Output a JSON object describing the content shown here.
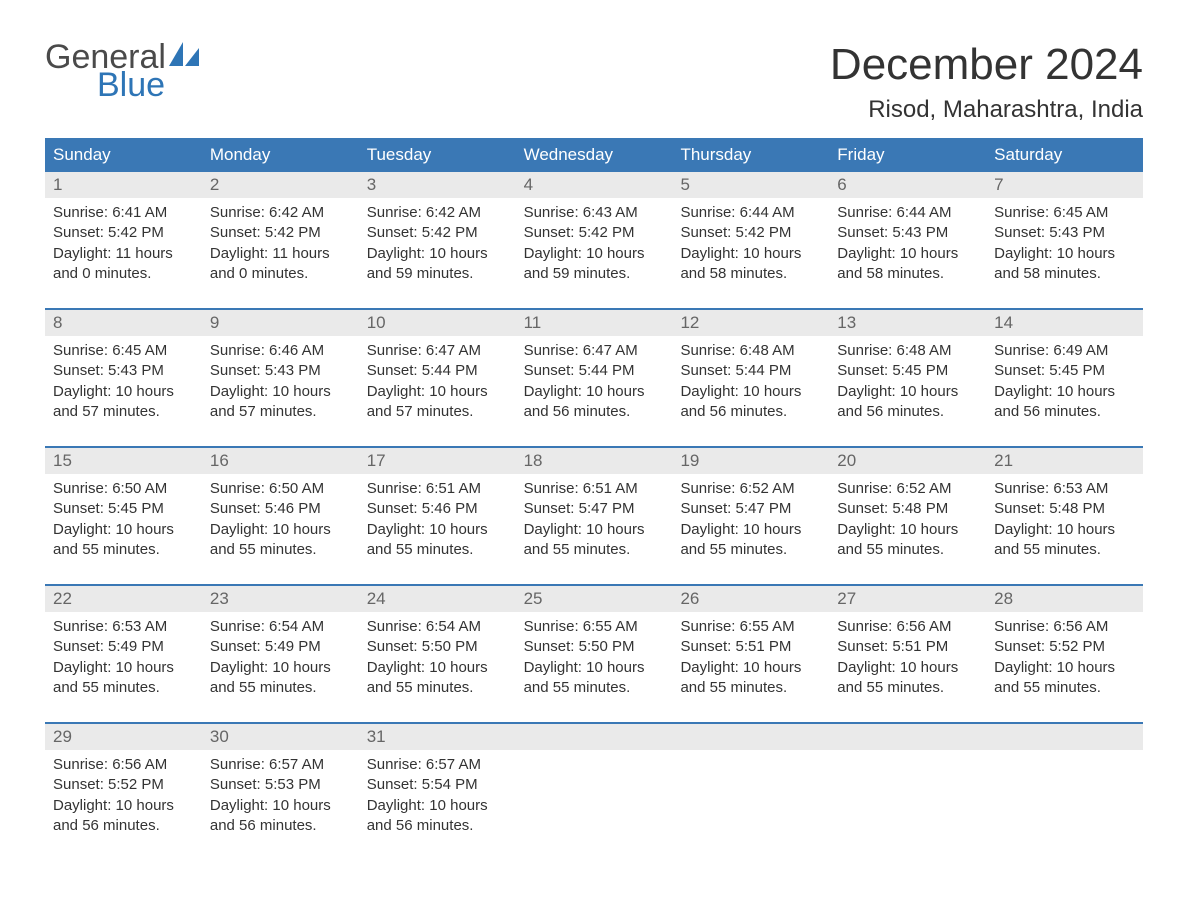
{
  "brand": {
    "general": "General",
    "blue": "Blue"
  },
  "title": "December 2024",
  "location": "Risod, Maharashtra, India",
  "colors": {
    "header_bg": "#3a78b5",
    "header_text": "#ffffff",
    "daynum_bg": "#eaeaea",
    "daynum_text": "#666666",
    "body_text": "#333333",
    "brand_blue": "#2e75b6",
    "brand_gray": "#4a4a4a",
    "week_border": "#3a78b5"
  },
  "weekdays": [
    "Sunday",
    "Monday",
    "Tuesday",
    "Wednesday",
    "Thursday",
    "Friday",
    "Saturday"
  ],
  "weeks": [
    [
      {
        "n": "1",
        "sunrise": "Sunrise: 6:41 AM",
        "sunset": "Sunset: 5:42 PM",
        "d1": "Daylight: 11 hours",
        "d2": "and 0 minutes."
      },
      {
        "n": "2",
        "sunrise": "Sunrise: 6:42 AM",
        "sunset": "Sunset: 5:42 PM",
        "d1": "Daylight: 11 hours",
        "d2": "and 0 minutes."
      },
      {
        "n": "3",
        "sunrise": "Sunrise: 6:42 AM",
        "sunset": "Sunset: 5:42 PM",
        "d1": "Daylight: 10 hours",
        "d2": "and 59 minutes."
      },
      {
        "n": "4",
        "sunrise": "Sunrise: 6:43 AM",
        "sunset": "Sunset: 5:42 PM",
        "d1": "Daylight: 10 hours",
        "d2": "and 59 minutes."
      },
      {
        "n": "5",
        "sunrise": "Sunrise: 6:44 AM",
        "sunset": "Sunset: 5:42 PM",
        "d1": "Daylight: 10 hours",
        "d2": "and 58 minutes."
      },
      {
        "n": "6",
        "sunrise": "Sunrise: 6:44 AM",
        "sunset": "Sunset: 5:43 PM",
        "d1": "Daylight: 10 hours",
        "d2": "and 58 minutes."
      },
      {
        "n": "7",
        "sunrise": "Sunrise: 6:45 AM",
        "sunset": "Sunset: 5:43 PM",
        "d1": "Daylight: 10 hours",
        "d2": "and 58 minutes."
      }
    ],
    [
      {
        "n": "8",
        "sunrise": "Sunrise: 6:45 AM",
        "sunset": "Sunset: 5:43 PM",
        "d1": "Daylight: 10 hours",
        "d2": "and 57 minutes."
      },
      {
        "n": "9",
        "sunrise": "Sunrise: 6:46 AM",
        "sunset": "Sunset: 5:43 PM",
        "d1": "Daylight: 10 hours",
        "d2": "and 57 minutes."
      },
      {
        "n": "10",
        "sunrise": "Sunrise: 6:47 AM",
        "sunset": "Sunset: 5:44 PM",
        "d1": "Daylight: 10 hours",
        "d2": "and 57 minutes."
      },
      {
        "n": "11",
        "sunrise": "Sunrise: 6:47 AM",
        "sunset": "Sunset: 5:44 PM",
        "d1": "Daylight: 10 hours",
        "d2": "and 56 minutes."
      },
      {
        "n": "12",
        "sunrise": "Sunrise: 6:48 AM",
        "sunset": "Sunset: 5:44 PM",
        "d1": "Daylight: 10 hours",
        "d2": "and 56 minutes."
      },
      {
        "n": "13",
        "sunrise": "Sunrise: 6:48 AM",
        "sunset": "Sunset: 5:45 PM",
        "d1": "Daylight: 10 hours",
        "d2": "and 56 minutes."
      },
      {
        "n": "14",
        "sunrise": "Sunrise: 6:49 AM",
        "sunset": "Sunset: 5:45 PM",
        "d1": "Daylight: 10 hours",
        "d2": "and 56 minutes."
      }
    ],
    [
      {
        "n": "15",
        "sunrise": "Sunrise: 6:50 AM",
        "sunset": "Sunset: 5:45 PM",
        "d1": "Daylight: 10 hours",
        "d2": "and 55 minutes."
      },
      {
        "n": "16",
        "sunrise": "Sunrise: 6:50 AM",
        "sunset": "Sunset: 5:46 PM",
        "d1": "Daylight: 10 hours",
        "d2": "and 55 minutes."
      },
      {
        "n": "17",
        "sunrise": "Sunrise: 6:51 AM",
        "sunset": "Sunset: 5:46 PM",
        "d1": "Daylight: 10 hours",
        "d2": "and 55 minutes."
      },
      {
        "n": "18",
        "sunrise": "Sunrise: 6:51 AM",
        "sunset": "Sunset: 5:47 PM",
        "d1": "Daylight: 10 hours",
        "d2": "and 55 minutes."
      },
      {
        "n": "19",
        "sunrise": "Sunrise: 6:52 AM",
        "sunset": "Sunset: 5:47 PM",
        "d1": "Daylight: 10 hours",
        "d2": "and 55 minutes."
      },
      {
        "n": "20",
        "sunrise": "Sunrise: 6:52 AM",
        "sunset": "Sunset: 5:48 PM",
        "d1": "Daylight: 10 hours",
        "d2": "and 55 minutes."
      },
      {
        "n": "21",
        "sunrise": "Sunrise: 6:53 AM",
        "sunset": "Sunset: 5:48 PM",
        "d1": "Daylight: 10 hours",
        "d2": "and 55 minutes."
      }
    ],
    [
      {
        "n": "22",
        "sunrise": "Sunrise: 6:53 AM",
        "sunset": "Sunset: 5:49 PM",
        "d1": "Daylight: 10 hours",
        "d2": "and 55 minutes."
      },
      {
        "n": "23",
        "sunrise": "Sunrise: 6:54 AM",
        "sunset": "Sunset: 5:49 PM",
        "d1": "Daylight: 10 hours",
        "d2": "and 55 minutes."
      },
      {
        "n": "24",
        "sunrise": "Sunrise: 6:54 AM",
        "sunset": "Sunset: 5:50 PM",
        "d1": "Daylight: 10 hours",
        "d2": "and 55 minutes."
      },
      {
        "n": "25",
        "sunrise": "Sunrise: 6:55 AM",
        "sunset": "Sunset: 5:50 PM",
        "d1": "Daylight: 10 hours",
        "d2": "and 55 minutes."
      },
      {
        "n": "26",
        "sunrise": "Sunrise: 6:55 AM",
        "sunset": "Sunset: 5:51 PM",
        "d1": "Daylight: 10 hours",
        "d2": "and 55 minutes."
      },
      {
        "n": "27",
        "sunrise": "Sunrise: 6:56 AM",
        "sunset": "Sunset: 5:51 PM",
        "d1": "Daylight: 10 hours",
        "d2": "and 55 minutes."
      },
      {
        "n": "28",
        "sunrise": "Sunrise: 6:56 AM",
        "sunset": "Sunset: 5:52 PM",
        "d1": "Daylight: 10 hours",
        "d2": "and 55 minutes."
      }
    ],
    [
      {
        "n": "29",
        "sunrise": "Sunrise: 6:56 AM",
        "sunset": "Sunset: 5:52 PM",
        "d1": "Daylight: 10 hours",
        "d2": "and 56 minutes."
      },
      {
        "n": "30",
        "sunrise": "Sunrise: 6:57 AM",
        "sunset": "Sunset: 5:53 PM",
        "d1": "Daylight: 10 hours",
        "d2": "and 56 minutes."
      },
      {
        "n": "31",
        "sunrise": "Sunrise: 6:57 AM",
        "sunset": "Sunset: 5:54 PM",
        "d1": "Daylight: 10 hours",
        "d2": "and 56 minutes."
      },
      {
        "n": "",
        "sunrise": "",
        "sunset": "",
        "d1": "",
        "d2": ""
      },
      {
        "n": "",
        "sunrise": "",
        "sunset": "",
        "d1": "",
        "d2": ""
      },
      {
        "n": "",
        "sunrise": "",
        "sunset": "",
        "d1": "",
        "d2": ""
      },
      {
        "n": "",
        "sunrise": "",
        "sunset": "",
        "d1": "",
        "d2": ""
      }
    ]
  ]
}
